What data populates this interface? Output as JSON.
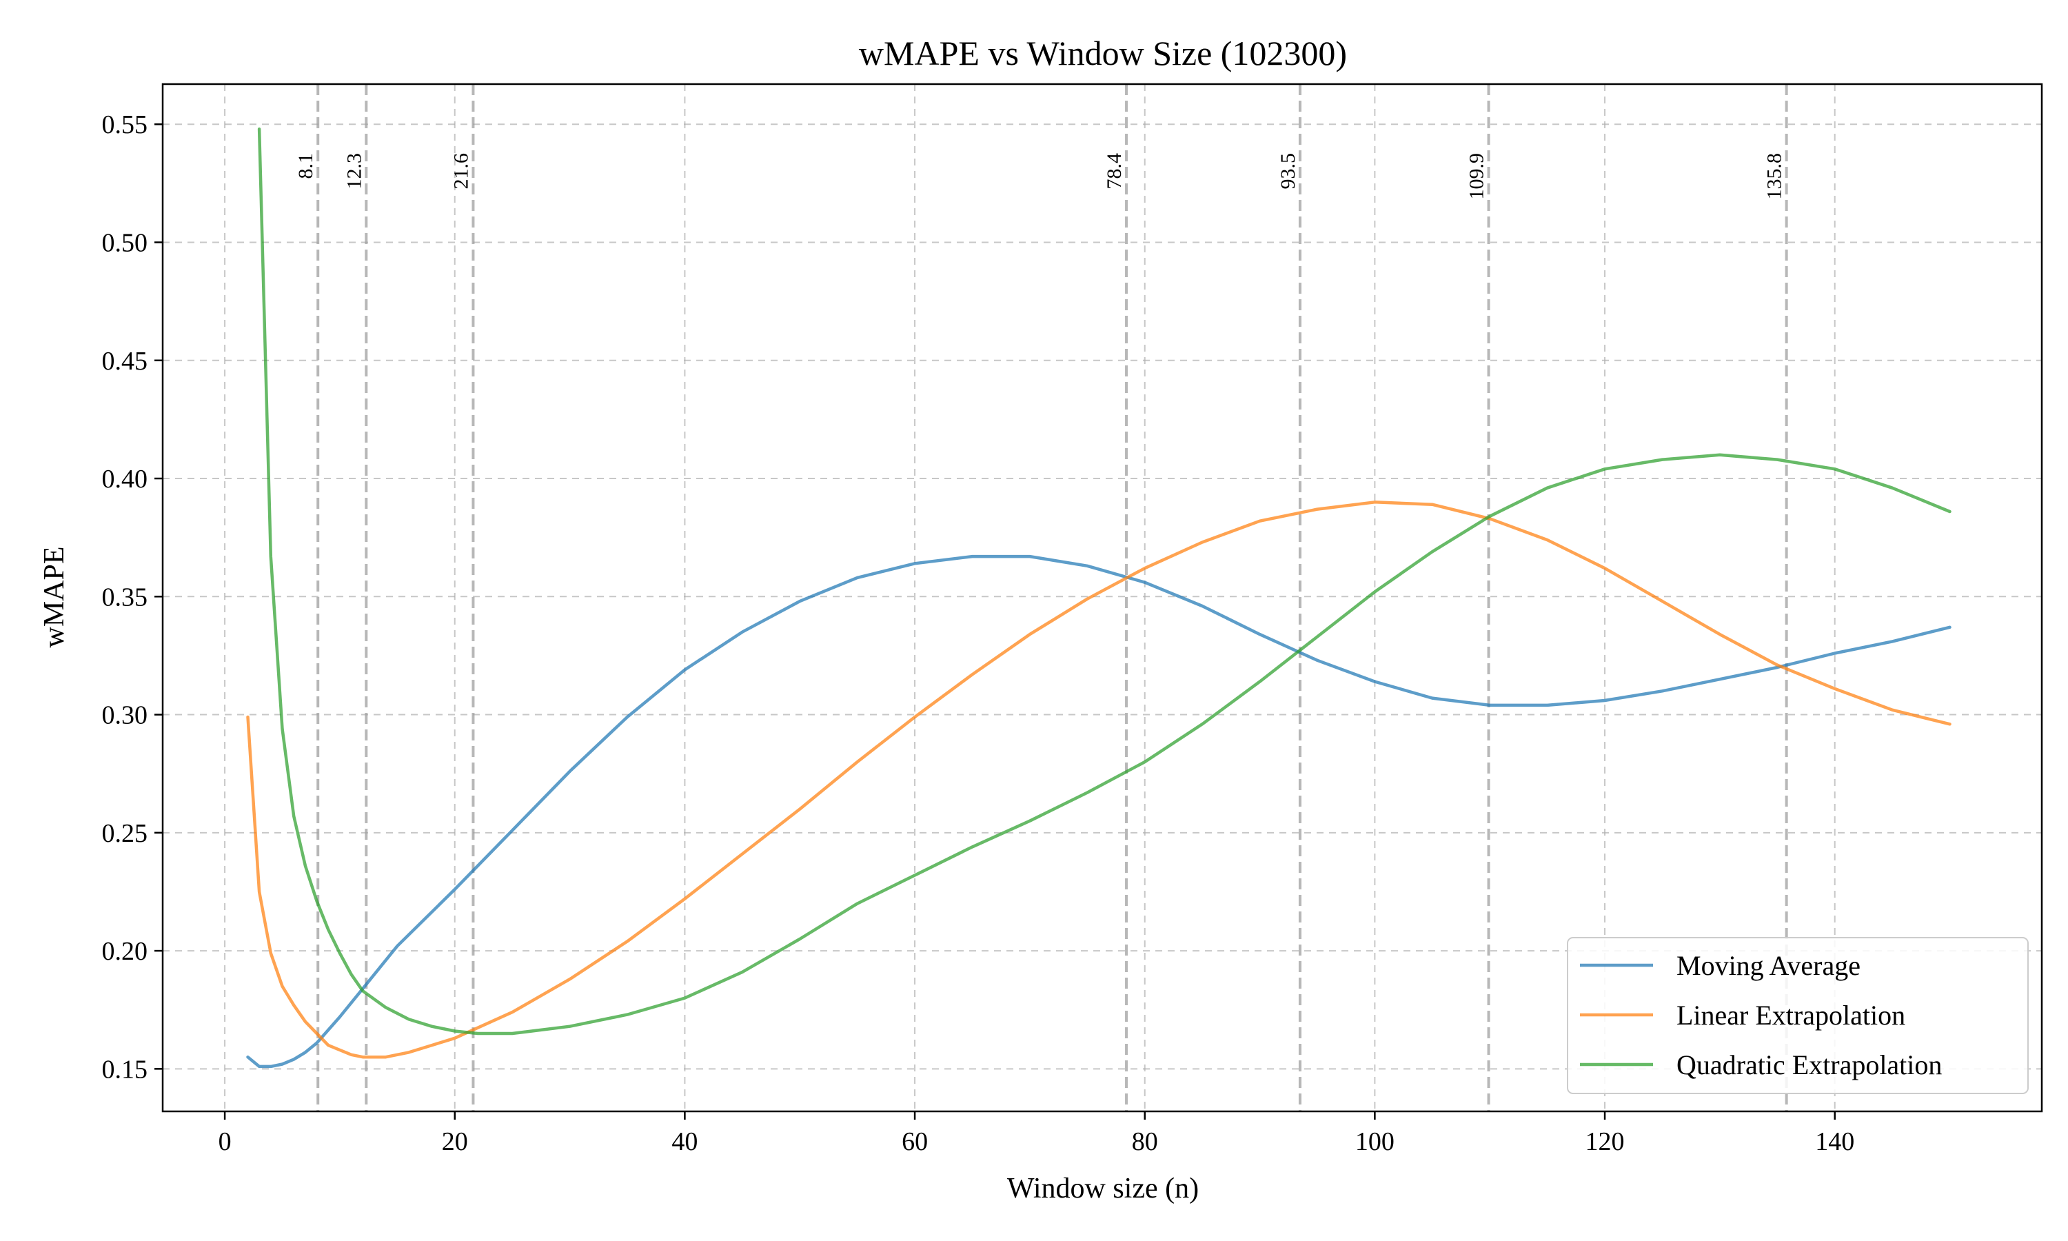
{
  "chart_data": {
    "type": "line",
    "title": "wMAPE vs Window Size (102300)",
    "xlabel": "Window size (n)",
    "ylabel": "wMAPE",
    "xlim": [
      -5.4,
      158.0
    ],
    "ylim": [
      0.132,
      0.567
    ],
    "xticks": [
      0,
      20,
      40,
      60,
      80,
      100,
      120,
      140
    ],
    "yticks": [
      0.15,
      0.2,
      0.25,
      0.3,
      0.35,
      0.4,
      0.45,
      0.5,
      0.55
    ],
    "ytick_labels": [
      "0.15",
      "0.20",
      "0.25",
      "0.30",
      "0.35",
      "0.40",
      "0.45",
      "0.50",
      "0.55"
    ],
    "grid": true,
    "legend_position": "lower-right",
    "vertical_lines": [
      {
        "x": 8.1,
        "label": "8.1"
      },
      {
        "x": 12.3,
        "label": "12.3"
      },
      {
        "x": 21.6,
        "label": "21.6"
      },
      {
        "x": 78.4,
        "label": "78.4"
      },
      {
        "x": 93.5,
        "label": "93.5"
      },
      {
        "x": 109.9,
        "label": "109.9"
      },
      {
        "x": 135.8,
        "label": "135.8"
      }
    ],
    "series": [
      {
        "name": "Moving Average",
        "color": "#1f77b4",
        "x": [
          2,
          3,
          4,
          5,
          6,
          7,
          8,
          10,
          12,
          15,
          20,
          25,
          30,
          35,
          40,
          45,
          50,
          55,
          60,
          65,
          70,
          75,
          80,
          85,
          90,
          95,
          100,
          105,
          110,
          115,
          120,
          125,
          130,
          135,
          140,
          145,
          150
        ],
        "y": [
          0.155,
          0.151,
          0.151,
          0.152,
          0.154,
          0.157,
          0.161,
          0.172,
          0.184,
          0.202,
          0.226,
          0.251,
          0.276,
          0.299,
          0.319,
          0.335,
          0.348,
          0.358,
          0.364,
          0.367,
          0.367,
          0.363,
          0.356,
          0.346,
          0.334,
          0.323,
          0.314,
          0.307,
          0.304,
          0.304,
          0.306,
          0.31,
          0.315,
          0.32,
          0.326,
          0.331,
          0.337
        ]
      },
      {
        "name": "Linear Extrapolation",
        "color": "#ff7f0e",
        "x": [
          2,
          3,
          4,
          5,
          6,
          7,
          8,
          9,
          10,
          11,
          12,
          13,
          14,
          16,
          18,
          20,
          25,
          30,
          35,
          40,
          45,
          50,
          55,
          60,
          65,
          70,
          75,
          80,
          85,
          90,
          95,
          100,
          105,
          110,
          115,
          120,
          125,
          130,
          135,
          140,
          145,
          150
        ],
        "y": [
          0.299,
          0.225,
          0.199,
          0.185,
          0.177,
          0.17,
          0.165,
          0.16,
          0.158,
          0.156,
          0.155,
          0.155,
          0.155,
          0.157,
          0.16,
          0.163,
          0.174,
          0.188,
          0.204,
          0.222,
          0.241,
          0.26,
          0.28,
          0.299,
          0.317,
          0.334,
          0.349,
          0.362,
          0.373,
          0.382,
          0.387,
          0.39,
          0.389,
          0.383,
          0.374,
          0.362,
          0.348,
          0.334,
          0.321,
          0.311,
          0.302,
          0.296
        ]
      },
      {
        "name": "Quadratic Extrapolation",
        "color": "#2ca02c",
        "x": [
          3,
          4,
          5,
          6,
          7,
          8,
          9,
          10,
          11,
          12,
          14,
          16,
          18,
          20,
          22,
          25,
          30,
          35,
          40,
          45,
          50,
          55,
          60,
          65,
          70,
          75,
          80,
          85,
          90,
          95,
          100,
          105,
          110,
          115,
          120,
          125,
          130,
          135,
          140,
          145,
          150
        ],
        "y": [
          0.548,
          0.367,
          0.294,
          0.257,
          0.236,
          0.221,
          0.209,
          0.199,
          0.19,
          0.183,
          0.176,
          0.171,
          0.168,
          0.166,
          0.165,
          0.165,
          0.168,
          0.173,
          0.18,
          0.191,
          0.205,
          0.22,
          0.232,
          0.244,
          0.255,
          0.267,
          0.28,
          0.296,
          0.314,
          0.333,
          0.352,
          0.369,
          0.384,
          0.396,
          0.404,
          0.408,
          0.41,
          0.408,
          0.404,
          0.396,
          0.386
        ]
      }
    ]
  }
}
